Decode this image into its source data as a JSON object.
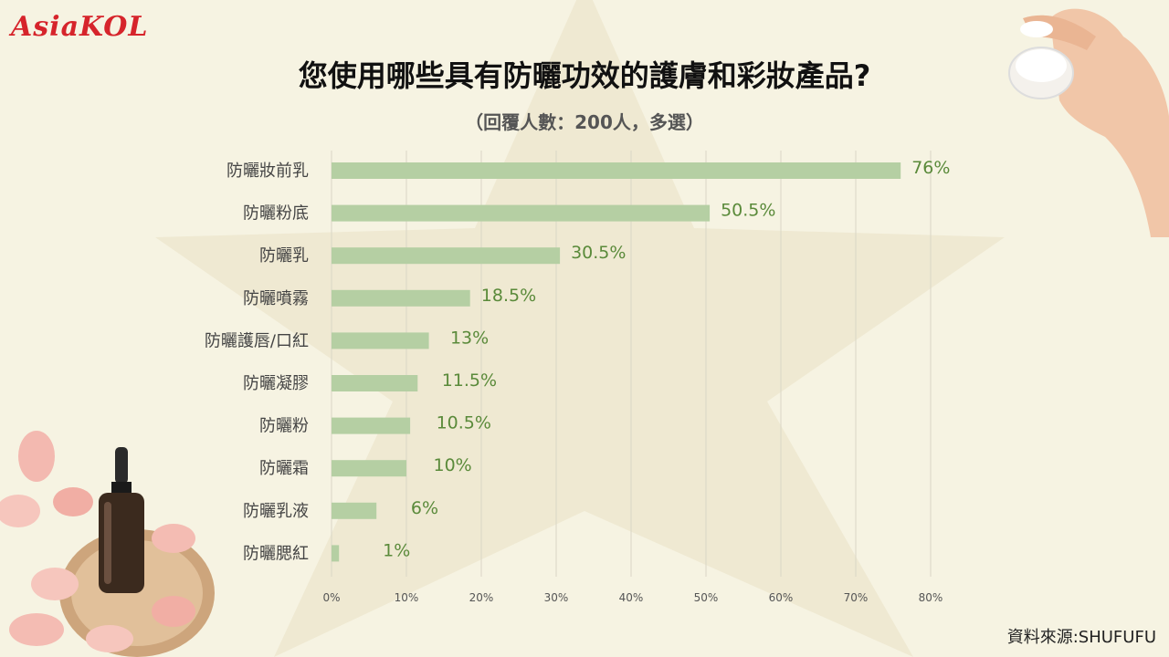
{
  "logo_text": "AsiaKOL",
  "title": "您使用哪些具有防曬功效的護膚和彩妝產品?",
  "subtitle": "（回覆人數：200人，多選）",
  "source": "資料來源:SHUFUFU",
  "colors": {
    "bar": "#b5cfa3",
    "label": "#5a8a3a",
    "accent": "#d6242b"
  },
  "chart_data": {
    "type": "bar",
    "orientation": "horizontal",
    "categories": [
      "防曬妝前乳",
      "防曬粉底",
      "防曬乳",
      "防曬噴霧",
      "防曬護唇/口紅",
      "防曬凝膠",
      "防曬粉",
      "防曬霜",
      "防曬乳液",
      "防曬腮紅"
    ],
    "values": [
      76,
      50.5,
      30.5,
      18.5,
      13,
      11.5,
      10.5,
      10,
      6,
      1
    ],
    "value_labels": [
      "76%",
      "50.5%",
      "30.5%",
      "18.5%",
      "13%",
      "11.5%",
      "10.5%",
      "10%",
      "6%",
      "1%"
    ],
    "xticks": [
      "0%",
      "10%",
      "20%",
      "30%",
      "40%",
      "50%",
      "60%",
      "70%",
      "80%"
    ],
    "xlim": [
      0,
      80
    ],
    "grid": true
  }
}
